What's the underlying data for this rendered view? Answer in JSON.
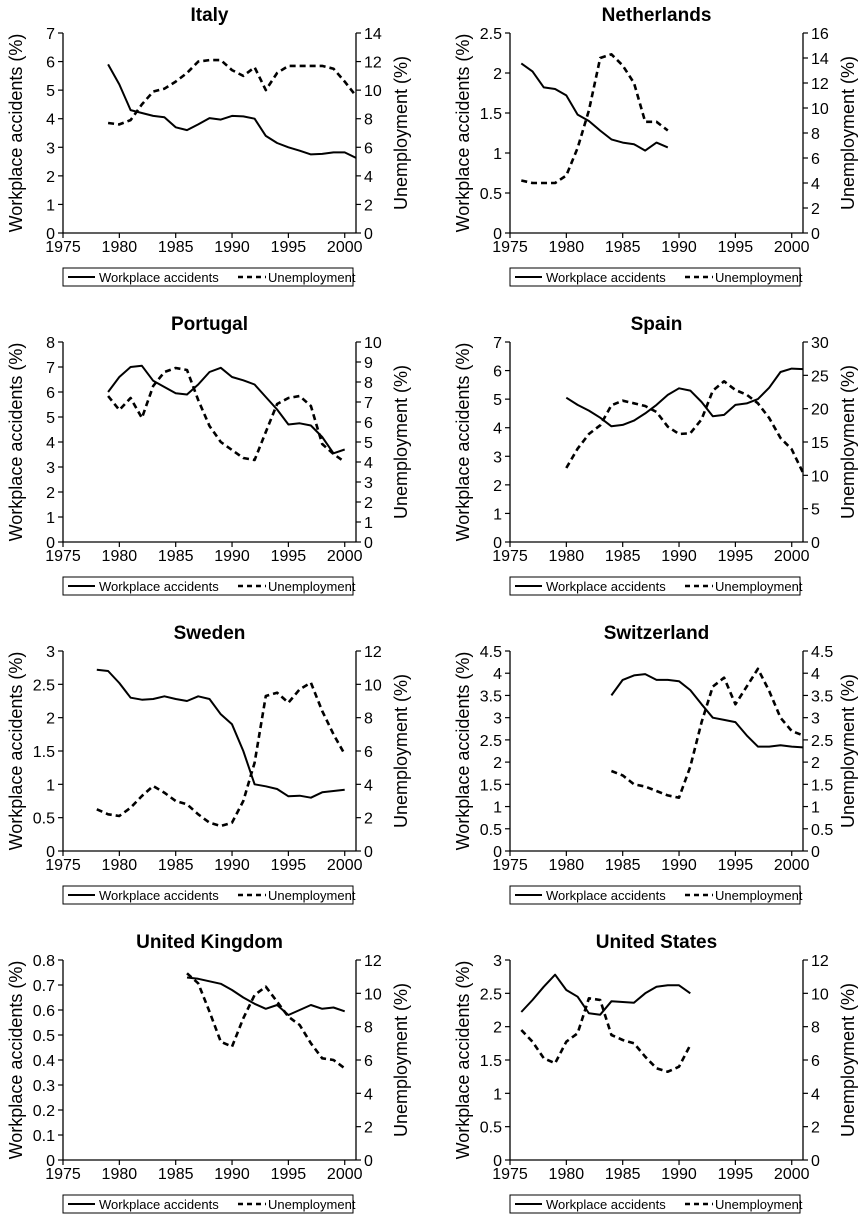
{
  "legend": {
    "accidents_label": "Workplace accidents",
    "unemployment_label": "Unemployment"
  },
  "axes": {
    "left_label": "Workplace accidents (%)",
    "right_label": "Unemployment (%)",
    "x_ticks": [
      1975,
      1980,
      1985,
      1990,
      1995,
      2000
    ]
  },
  "chart_data": [
    {
      "type": "line",
      "title": "Italy",
      "xlim": [
        1975,
        2001
      ],
      "ylim_left": [
        0,
        7
      ],
      "yticks_left": [
        0,
        1,
        2,
        3,
        4,
        5,
        6,
        7
      ],
      "ylim_right": [
        0,
        14
      ],
      "yticks_right": [
        0,
        2,
        4,
        6,
        8,
        10,
        12,
        14
      ],
      "series": [
        {
          "name": "Workplace accidents",
          "axis": "left",
          "x": [
            1979,
            1980,
            1981,
            1982,
            1983,
            1984,
            1985,
            1986,
            1987,
            1988,
            1989,
            1990,
            1991,
            1992,
            1993,
            1994,
            1995,
            1996,
            1997,
            1998,
            1999,
            2000,
            2001
          ],
          "y": [
            5.9,
            5.2,
            4.3,
            4.2,
            4.1,
            4.05,
            3.7,
            3.6,
            3.8,
            4.02,
            3.97,
            4.1,
            4.08,
            4.0,
            3.4,
            3.15,
            3.0,
            2.88,
            2.75,
            2.77,
            2.82,
            2.82,
            2.63
          ]
        },
        {
          "name": "Unemployment",
          "axis": "right",
          "x": [
            1979,
            1980,
            1981,
            1982,
            1983,
            1984,
            1985,
            1986,
            1987,
            1988,
            1989,
            1990,
            1991,
            1992,
            1993,
            1994,
            1995,
            1996,
            1997,
            1998,
            1999,
            2000,
            2001
          ],
          "y": [
            7.7,
            7.6,
            7.9,
            9.0,
            9.9,
            10.1,
            10.6,
            11.2,
            12.0,
            12.1,
            12.1,
            11.4,
            11.0,
            11.6,
            10.0,
            11.2,
            11.7,
            11.7,
            11.7,
            11.7,
            11.5,
            10.6,
            9.6
          ]
        }
      ]
    },
    {
      "type": "line",
      "title": "Netherlands",
      "xlim": [
        1975,
        2001
      ],
      "ylim_left": [
        0,
        2.5
      ],
      "yticks_left": [
        0,
        0.5,
        1,
        1.5,
        2,
        2.5
      ],
      "ylim_right": [
        0,
        16
      ],
      "yticks_right": [
        0,
        2,
        4,
        6,
        8,
        10,
        12,
        14,
        16
      ],
      "series": [
        {
          "name": "Workplace accidents",
          "axis": "left",
          "x": [
            1976,
            1977,
            1978,
            1979,
            1980,
            1981,
            1982,
            1983,
            1984,
            1985,
            1986,
            1987,
            1988,
            1989
          ],
          "y": [
            2.12,
            2.02,
            1.82,
            1.8,
            1.72,
            1.48,
            1.4,
            1.28,
            1.17,
            1.13,
            1.11,
            1.03,
            1.13,
            1.07
          ]
        },
        {
          "name": "Unemployment",
          "axis": "right",
          "x": [
            1976,
            1977,
            1978,
            1979,
            1980,
            1981,
            1982,
            1983,
            1984,
            1985,
            1986,
            1987,
            1988,
            1989
          ],
          "y": [
            4.2,
            4.0,
            4.0,
            4.0,
            4.6,
            6.8,
            9.8,
            14.0,
            14.3,
            13.4,
            12.0,
            8.9,
            8.9,
            8.2
          ]
        }
      ]
    },
    {
      "type": "line",
      "title": "Portugal",
      "xlim": [
        1975,
        2001
      ],
      "ylim_left": [
        0,
        8
      ],
      "yticks_left": [
        0,
        1,
        2,
        3,
        4,
        5,
        6,
        7,
        8
      ],
      "ylim_right": [
        0,
        10
      ],
      "yticks_right": [
        0,
        1,
        2,
        3,
        4,
        5,
        6,
        7,
        8,
        9,
        10
      ],
      "series": [
        {
          "name": "Workplace accidents",
          "axis": "left",
          "x": [
            1979,
            1980,
            1981,
            1982,
            1983,
            1984,
            1985,
            1986,
            1987,
            1988,
            1989,
            1990,
            1991,
            1992,
            1993,
            1994,
            1995,
            1996,
            1997,
            1998,
            1999,
            2000
          ],
          "y": [
            6.0,
            6.6,
            7.0,
            7.05,
            6.45,
            6.2,
            5.95,
            5.9,
            6.3,
            6.8,
            6.97,
            6.6,
            6.47,
            6.3,
            5.8,
            5.3,
            4.7,
            4.75,
            4.66,
            4.2,
            3.55,
            3.7
          ]
        },
        {
          "name": "Unemployment",
          "axis": "right",
          "x": [
            1979,
            1980,
            1981,
            1982,
            1983,
            1984,
            1985,
            1986,
            1987,
            1988,
            1989,
            1990,
            1991,
            1992,
            1993,
            1994,
            1995,
            1996,
            1997,
            1998,
            1999,
            2000
          ],
          "y": [
            7.3,
            6.6,
            7.2,
            6.2,
            7.8,
            8.5,
            8.7,
            8.6,
            7.1,
            5.8,
            5.0,
            4.6,
            4.2,
            4.1,
            5.5,
            6.9,
            7.2,
            7.3,
            6.8,
            4.9,
            4.4,
            4.0
          ]
        }
      ]
    },
    {
      "type": "line",
      "title": "Spain",
      "xlim": [
        1975,
        2001
      ],
      "ylim_left": [
        0,
        7
      ],
      "yticks_left": [
        0,
        1,
        2,
        3,
        4,
        5,
        6,
        7
      ],
      "ylim_right": [
        0,
        30
      ],
      "yticks_right": [
        0,
        5,
        10,
        15,
        20,
        25,
        30
      ],
      "series": [
        {
          "name": "Workplace accidents",
          "axis": "left",
          "x": [
            1980,
            1981,
            1982,
            1983,
            1984,
            1985,
            1986,
            1987,
            1988,
            1989,
            1990,
            1991,
            1992,
            1993,
            1994,
            1995,
            1996,
            1997,
            1998,
            1999,
            2000,
            2001
          ],
          "y": [
            5.05,
            4.8,
            4.6,
            4.35,
            4.05,
            4.1,
            4.25,
            4.5,
            4.8,
            5.15,
            5.38,
            5.3,
            4.9,
            4.4,
            4.45,
            4.8,
            4.85,
            5.0,
            5.4,
            5.95,
            6.07,
            6.05
          ]
        },
        {
          "name": "Unemployment",
          "axis": "right",
          "x": [
            1980,
            1981,
            1982,
            1983,
            1984,
            1985,
            1986,
            1987,
            1988,
            1989,
            1990,
            1991,
            1992,
            1993,
            1994,
            1995,
            1996,
            1997,
            1998,
            1999,
            2000,
            2001
          ],
          "y": [
            11.1,
            14.0,
            16.2,
            17.5,
            20.5,
            21.2,
            20.8,
            20.4,
            19.5,
            17.3,
            16.2,
            16.3,
            18.4,
            22.7,
            24.1,
            22.8,
            22.1,
            20.8,
            18.6,
            15.6,
            13.9,
            10.4
          ]
        }
      ]
    },
    {
      "type": "line",
      "title": "Sweden",
      "xlim": [
        1975,
        2001
      ],
      "ylim_left": [
        0,
        3
      ],
      "yticks_left": [
        0,
        0.5,
        1,
        1.5,
        2,
        2.5,
        3
      ],
      "ylim_right": [
        0,
        12
      ],
      "yticks_right": [
        0,
        2,
        4,
        6,
        8,
        10,
        12
      ],
      "series": [
        {
          "name": "Workplace accidents",
          "axis": "left",
          "x": [
            1978,
            1979,
            1980,
            1981,
            1982,
            1983,
            1984,
            1985,
            1986,
            1987,
            1988,
            1989,
            1990,
            1991,
            1992,
            1993,
            1994,
            1995,
            1996,
            1997,
            1998,
            1999,
            2000
          ],
          "y": [
            2.72,
            2.7,
            2.52,
            2.3,
            2.27,
            2.28,
            2.32,
            2.28,
            2.25,
            2.32,
            2.28,
            2.05,
            1.9,
            1.5,
            1.0,
            0.97,
            0.93,
            0.82,
            0.83,
            0.8,
            0.88,
            0.9,
            0.92
          ]
        },
        {
          "name": "Unemployment",
          "axis": "right",
          "x": [
            1978,
            1979,
            1980,
            1981,
            1982,
            1983,
            1984,
            1985,
            1986,
            1987,
            1988,
            1989,
            1990,
            1991,
            1992,
            1993,
            1994,
            1995,
            1996,
            1997,
            1998,
            1999,
            2000
          ],
          "y": [
            2.5,
            2.2,
            2.1,
            2.6,
            3.3,
            3.9,
            3.5,
            3.0,
            2.8,
            2.2,
            1.7,
            1.5,
            1.7,
            3.0,
            5.3,
            9.3,
            9.5,
            8.9,
            9.7,
            10.1,
            8.4,
            7.0,
            5.8
          ]
        }
      ]
    },
    {
      "type": "line",
      "title": "Switzerland",
      "xlim": [
        1975,
        2001
      ],
      "ylim_left": [
        0,
        4.5
      ],
      "yticks_left": [
        0,
        0.5,
        1,
        1.5,
        2,
        2.5,
        3,
        3.5,
        4,
        4.5
      ],
      "ylim_right": [
        0,
        4.5
      ],
      "yticks_right": [
        0,
        0.5,
        1,
        1.5,
        2,
        2.5,
        3,
        3.5,
        4,
        4.5
      ],
      "series": [
        {
          "name": "Workplace accidents",
          "axis": "left",
          "x": [
            1984,
            1985,
            1986,
            1987,
            1988,
            1989,
            1990,
            1991,
            1992,
            1993,
            1994,
            1995,
            1996,
            1997,
            1998,
            1999,
            2000,
            2001
          ],
          "y": [
            3.5,
            3.85,
            3.95,
            3.98,
            3.85,
            3.85,
            3.82,
            3.62,
            3.3,
            3.0,
            2.95,
            2.9,
            2.6,
            2.35,
            2.35,
            2.38,
            2.35,
            2.33
          ]
        },
        {
          "name": "Unemployment",
          "axis": "right",
          "x": [
            1984,
            1985,
            1986,
            1987,
            1988,
            1989,
            1990,
            1991,
            1992,
            1993,
            1994,
            1995,
            1996,
            1997,
            1998,
            1999,
            2000,
            2001
          ],
          "y": [
            1.8,
            1.7,
            1.5,
            1.45,
            1.35,
            1.25,
            1.2,
            1.9,
            2.9,
            3.7,
            3.9,
            3.3,
            3.7,
            4.1,
            3.6,
            3.0,
            2.7,
            2.6
          ]
        }
      ]
    },
    {
      "type": "line",
      "title": "United Kingdom",
      "xlim": [
        1975,
        2001
      ],
      "ylim_left": [
        0,
        0.8
      ],
      "yticks_left": [
        0,
        0.1,
        0.2,
        0.3,
        0.4,
        0.5,
        0.6,
        0.7,
        0.8
      ],
      "ylim_right": [
        0,
        12
      ],
      "yticks_right": [
        0,
        2,
        4,
        6,
        8,
        10,
        12
      ],
      "series": [
        {
          "name": "Workplace accidents",
          "axis": "left",
          "x": [
            1986,
            1987,
            1988,
            1989,
            1990,
            1991,
            1992,
            1993,
            1994,
            1995,
            1996,
            1997,
            1998,
            1999,
            2000
          ],
          "y": [
            0.73,
            0.725,
            0.715,
            0.705,
            0.68,
            0.65,
            0.625,
            0.605,
            0.62,
            0.58,
            0.6,
            0.62,
            0.605,
            0.61,
            0.595
          ]
        },
        {
          "name": "Unemployment",
          "axis": "right",
          "x": [
            1986,
            1987,
            1988,
            1989,
            1990,
            1991,
            1992,
            1993,
            1994,
            1995,
            1996,
            1997,
            1998,
            1999,
            2000
          ],
          "y": [
            11.2,
            10.6,
            8.9,
            7.1,
            6.8,
            8.5,
            9.9,
            10.4,
            9.5,
            8.6,
            8.1,
            7.0,
            6.1,
            6.0,
            5.5
          ]
        }
      ]
    },
    {
      "type": "line",
      "title": "United States",
      "xlim": [
        1975,
        2001
      ],
      "ylim_left": [
        0,
        3
      ],
      "yticks_left": [
        0,
        0.5,
        1,
        1.5,
        2,
        2.5,
        3
      ],
      "ylim_right": [
        0,
        12
      ],
      "yticks_right": [
        0,
        2,
        4,
        6,
        8,
        10,
        12
      ],
      "series": [
        {
          "name": "Workplace accidents",
          "axis": "left",
          "x": [
            1976,
            1977,
            1978,
            1979,
            1980,
            1981,
            1982,
            1983,
            1984,
            1985,
            1986,
            1987,
            1988,
            1989,
            1990,
            1991
          ],
          "y": [
            2.22,
            2.4,
            2.6,
            2.78,
            2.55,
            2.45,
            2.2,
            2.18,
            2.38,
            2.37,
            2.36,
            2.5,
            2.6,
            2.62,
            2.62,
            2.5
          ]
        },
        {
          "name": "Unemployment",
          "axis": "right",
          "x": [
            1976,
            1977,
            1978,
            1979,
            1980,
            1981,
            1982,
            1983,
            1984,
            1985,
            1986,
            1987,
            1988,
            1989,
            1990,
            1991
          ],
          "y": [
            7.8,
            7.1,
            6.1,
            5.8,
            7.1,
            7.6,
            9.7,
            9.6,
            7.5,
            7.2,
            7.0,
            6.2,
            5.5,
            5.3,
            5.6,
            6.9
          ]
        }
      ]
    }
  ]
}
